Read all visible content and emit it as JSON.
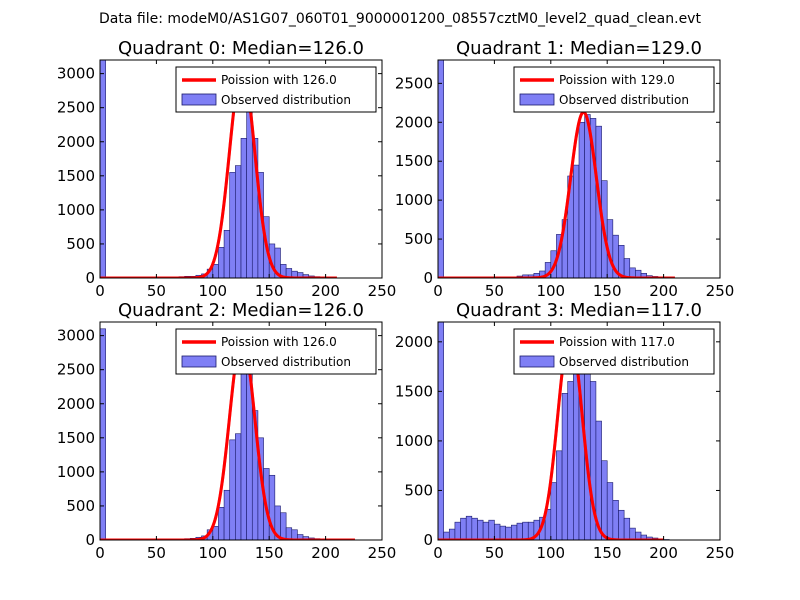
{
  "figure": {
    "suptitle": "Data file: modeM0/AS1G07_060T01_9000001200_08557cztM0_level2_quad_clean.evt"
  },
  "colors": {
    "bar_fill": "#7f7ff5",
    "bar_edge": "#1a1a6a",
    "curve": "#ff0000",
    "axes": "#000000",
    "legend_edge": "#000000"
  },
  "chart_data": [
    {
      "type": "bar",
      "title": "Quadrant 0: Median=126.0",
      "legend": [
        "Poission with 126.0",
        "Observed distribution"
      ],
      "legend_position": "top-right",
      "xlim": [
        0,
        250
      ],
      "ylim": [
        0,
        3200
      ],
      "xticks": [
        "0",
        "50",
        "100",
        "150",
        "200",
        "250"
      ],
      "yticks": [
        "0",
        "500",
        "1000",
        "1500",
        "2000",
        "2500",
        "3000"
      ],
      "bin_width": 5,
      "bins": [
        [
          0,
          3200
        ],
        [
          65,
          10
        ],
        [
          70,
          20
        ],
        [
          75,
          25
        ],
        [
          80,
          25
        ],
        [
          85,
          40
        ],
        [
          90,
          60
        ],
        [
          95,
          130
        ],
        [
          100,
          200
        ],
        [
          105,
          450
        ],
        [
          110,
          700
        ],
        [
          115,
          1550
        ],
        [
          120,
          1650
        ],
        [
          125,
          2050
        ],
        [
          130,
          3050
        ],
        [
          135,
          2050
        ],
        [
          140,
          1550
        ],
        [
          145,
          900
        ],
        [
          150,
          500
        ],
        [
          155,
          440
        ],
        [
          160,
          200
        ],
        [
          165,
          140
        ],
        [
          170,
          100
        ],
        [
          175,
          80
        ],
        [
          180,
          50
        ],
        [
          185,
          30
        ],
        [
          190,
          20
        ],
        [
          195,
          10
        ]
      ],
      "curve": {
        "x_start": 0,
        "x_end": 210,
        "mean": 126.0,
        "peak": 3060,
        "sigma": 11.2
      }
    },
    {
      "type": "bar",
      "title": "Quadrant 1: Median=129.0",
      "legend": [
        "Poission with 129.0",
        "Observed distribution"
      ],
      "legend_position": "top-right",
      "xlim": [
        0,
        250
      ],
      "ylim": [
        0,
        2800
      ],
      "xticks": [
        "0",
        "50",
        "100",
        "150",
        "200",
        "250"
      ],
      "yticks": [
        "0",
        "500",
        "1000",
        "1500",
        "2000",
        "2500"
      ],
      "bin_width": 5,
      "bins": [
        [
          0,
          2800
        ],
        [
          65,
          10
        ],
        [
          70,
          25
        ],
        [
          75,
          40
        ],
        [
          80,
          40
        ],
        [
          85,
          60
        ],
        [
          90,
          90
        ],
        [
          95,
          200
        ],
        [
          100,
          350
        ],
        [
          105,
          560
        ],
        [
          110,
          750
        ],
        [
          115,
          1310
        ],
        [
          120,
          1450
        ],
        [
          125,
          2000
        ],
        [
          130,
          2100
        ],
        [
          135,
          2050
        ],
        [
          140,
          1950
        ],
        [
          145,
          1250
        ],
        [
          150,
          750
        ],
        [
          155,
          550
        ],
        [
          160,
          420
        ],
        [
          165,
          250
        ],
        [
          170,
          130
        ],
        [
          175,
          100
        ],
        [
          180,
          60
        ],
        [
          185,
          30
        ],
        [
          190,
          20
        ],
        [
          195,
          10
        ]
      ],
      "curve": {
        "x_start": 0,
        "x_end": 210,
        "mean": 129.0,
        "peak": 2130,
        "sigma": 11.4
      }
    },
    {
      "type": "bar",
      "title": "Quadrant 2: Median=126.0",
      "legend": [
        "Poission with 126.0",
        "Observed distribution"
      ],
      "legend_position": "top-right",
      "xlim": [
        0,
        250
      ],
      "ylim": [
        0,
        3200
      ],
      "xticks": [
        "0",
        "50",
        "100",
        "150",
        "200",
        "250"
      ],
      "yticks": [
        "0",
        "500",
        "1000",
        "1500",
        "2000",
        "2500",
        "3000"
      ],
      "bin_width": 5,
      "bins": [
        [
          0,
          3100
        ],
        [
          70,
          10
        ],
        [
          75,
          20
        ],
        [
          80,
          25
        ],
        [
          85,
          40
        ],
        [
          90,
          60
        ],
        [
          95,
          150
        ],
        [
          100,
          200
        ],
        [
          105,
          480
        ],
        [
          110,
          730
        ],
        [
          115,
          1470
        ],
        [
          120,
          1560
        ],
        [
          125,
          2950
        ],
        [
          130,
          2900
        ],
        [
          135,
          1900
        ],
        [
          140,
          1500
        ],
        [
          145,
          1050
        ],
        [
          150,
          950
        ],
        [
          155,
          500
        ],
        [
          160,
          400
        ],
        [
          165,
          180
        ],
        [
          170,
          150
        ],
        [
          175,
          80
        ],
        [
          180,
          50
        ],
        [
          185,
          30
        ],
        [
          190,
          20
        ],
        [
          195,
          10
        ]
      ],
      "curve": {
        "x_start": 0,
        "x_end": 226,
        "mean": 126.0,
        "peak": 2960,
        "sigma": 11.2
      }
    },
    {
      "type": "bar",
      "title": "Quadrant 3: Median=117.0",
      "legend": [
        "Poission with 117.0",
        "Observed distribution"
      ],
      "legend_position": "top-right",
      "xlim": [
        0,
        250
      ],
      "ylim": [
        0,
        2200
      ],
      "xticks": [
        "0",
        "50",
        "100",
        "150",
        "200",
        "250"
      ],
      "yticks": [
        "0",
        "500",
        "1000",
        "1500",
        "2000"
      ],
      "bin_width": 5,
      "bins": [
        [
          0,
          2200
        ],
        [
          5,
          80
        ],
        [
          10,
          110
        ],
        [
          15,
          180
        ],
        [
          20,
          220
        ],
        [
          25,
          240
        ],
        [
          30,
          220
        ],
        [
          35,
          200
        ],
        [
          40,
          180
        ],
        [
          45,
          200
        ],
        [
          50,
          160
        ],
        [
          55,
          140
        ],
        [
          60,
          130
        ],
        [
          65,
          150
        ],
        [
          70,
          170
        ],
        [
          75,
          180
        ],
        [
          80,
          180
        ],
        [
          85,
          200
        ],
        [
          90,
          230
        ],
        [
          95,
          310
        ],
        [
          100,
          580
        ],
        [
          105,
          900
        ],
        [
          110,
          1480
        ],
        [
          115,
          1600
        ],
        [
          120,
          2050
        ],
        [
          125,
          2050
        ],
        [
          130,
          1750
        ],
        [
          135,
          1600
        ],
        [
          140,
          1200
        ],
        [
          145,
          800
        ],
        [
          150,
          580
        ],
        [
          155,
          400
        ],
        [
          160,
          300
        ],
        [
          165,
          220
        ],
        [
          170,
          120
        ],
        [
          175,
          80
        ],
        [
          180,
          50
        ],
        [
          185,
          30
        ],
        [
          190,
          20
        ],
        [
          195,
          10
        ],
        [
          200,
          5
        ]
      ],
      "curve": {
        "x_start": 0,
        "x_end": 200,
        "mean": 117.0,
        "peak": 2080,
        "sigma": 10.8
      }
    }
  ]
}
